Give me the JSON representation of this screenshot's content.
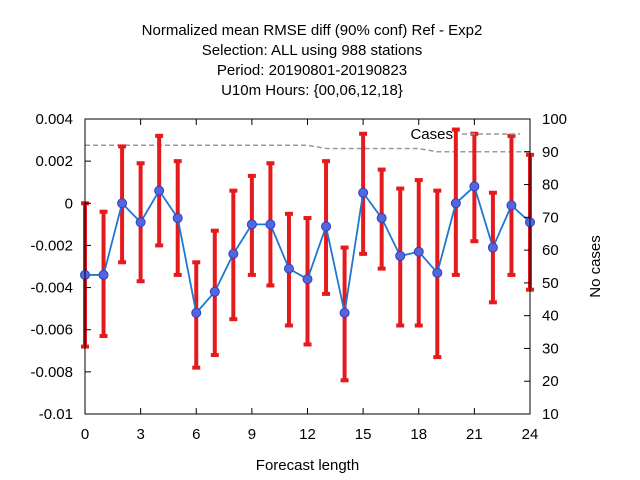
{
  "chart_data": {
    "type": "line",
    "title_lines": [
      "Normalized mean RMSE diff (90% conf) Ref - Exp2",
      "Selection: ALL using   988 stations",
      "Period: 20190801-20190823",
      "U10m   Hours: {00,06,12,18}"
    ],
    "xlabel": "Forecast length",
    "ylabel": "",
    "y2label": "No cases",
    "xlim": [
      0,
      24
    ],
    "ylim": [
      -0.01,
      0.004
    ],
    "y2lim": [
      10,
      100
    ],
    "x_ticks": [
      0,
      3,
      6,
      9,
      12,
      15,
      18,
      21,
      24
    ],
    "x_tick_labels": [
      "0",
      "3",
      "6",
      "9",
      "12",
      "15",
      "18",
      "21",
      "24"
    ],
    "y_ticks": [
      -0.01,
      -0.008,
      -0.006,
      -0.004,
      -0.002,
      0,
      0.002,
      0.004
    ],
    "y_tick_labels": [
      "-0.01",
      "-0.008",
      "-0.006",
      "-0.004",
      "-0.002",
      "0",
      "0.002",
      "0.004"
    ],
    "y2_ticks": [
      10,
      20,
      30,
      40,
      50,
      60,
      70,
      80,
      90,
      100
    ],
    "y2_tick_labels": [
      "10",
      "20",
      "30",
      "40",
      "50",
      "60",
      "70",
      "80",
      "90",
      "100"
    ],
    "grid": false,
    "legend": {
      "placement": "top-right",
      "entries": [
        "Cases"
      ]
    },
    "colors": {
      "line": "#1f77d4",
      "marker": "#5566dd",
      "errorbar": "#e41a1c",
      "cases": "#999999"
    },
    "series": [
      {
        "x": [
          0,
          1,
          2,
          3,
          4,
          5,
          6,
          7,
          8,
          9,
          10,
          11,
          12,
          13,
          14,
          15,
          16,
          17,
          18,
          19,
          20,
          21,
          22,
          23,
          24
        ],
        "values": [
          -0.0034,
          -0.0034,
          0.0,
          -0.0009,
          0.0006,
          -0.0007,
          -0.0052,
          -0.0042,
          -0.0024,
          -0.001,
          -0.001,
          -0.0031,
          -0.0036,
          -0.0011,
          -0.0052,
          0.0005,
          -0.0007,
          -0.0025,
          -0.0023,
          -0.0033,
          0.0,
          0.0008,
          -0.0021,
          -0.0001,
          -0.0009
        ],
        "lower": [
          -0.0068,
          -0.0063,
          -0.0028,
          -0.0037,
          -0.002,
          -0.0034,
          -0.0078,
          -0.0072,
          -0.0055,
          -0.0034,
          -0.0039,
          -0.0058,
          -0.0067,
          -0.0043,
          -0.0084,
          -0.0024,
          -0.0031,
          -0.0058,
          -0.0058,
          -0.0073,
          -0.0034,
          -0.0018,
          -0.0047,
          -0.0034,
          -0.0041
        ],
        "upper": [
          0.0,
          -0.0004,
          0.0027,
          0.0019,
          0.0032,
          0.002,
          -0.0028,
          -0.0013,
          0.0006,
          0.0013,
          0.0019,
          -0.0005,
          -0.0007,
          0.002,
          -0.0021,
          0.0033,
          0.0016,
          0.0007,
          0.0011,
          0.0006,
          0.0035,
          0.0033,
          0.0005,
          0.0032,
          0.0023
        ]
      },
      {
        "name": "Cases",
        "axis": "y2",
        "x": [
          0,
          1,
          2,
          3,
          4,
          5,
          6,
          7,
          8,
          9,
          10,
          11,
          12,
          13,
          14,
          15,
          16,
          17,
          18,
          19,
          20,
          21,
          22,
          23,
          24
        ],
        "values": [
          92,
          92,
          92,
          92,
          92,
          92,
          92,
          92,
          92,
          92,
          92,
          92,
          92,
          91,
          91,
          91,
          91,
          91,
          91,
          90,
          90,
          90,
          90,
          90,
          90
        ]
      }
    ]
  }
}
